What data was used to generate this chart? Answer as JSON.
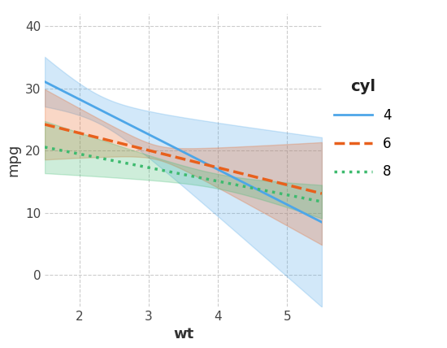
{
  "title": "",
  "xlabel": "wt",
  "ylabel": "mpg",
  "xlim": [
    1.5,
    5.5
  ],
  "ylim": [
    -5,
    42
  ],
  "yticks": [
    0,
    10,
    20,
    30,
    40
  ],
  "xticks": [
    2,
    3,
    4,
    5
  ],
  "background_color": "#ffffff",
  "grid_color": "#cccccc",
  "legend_title": "cyl",
  "colors": {
    "4": "#4da6e8",
    "6": "#e8601c",
    "8": "#3dba6e"
  },
  "linestyles": {
    "4": "-",
    "6": "--",
    "8": ":"
  },
  "linewidths": {
    "4": 2.0,
    "6": 2.5,
    "8": 2.5
  },
  "ci_alpha": 0.25,
  "fig_bg": "#ffffff"
}
